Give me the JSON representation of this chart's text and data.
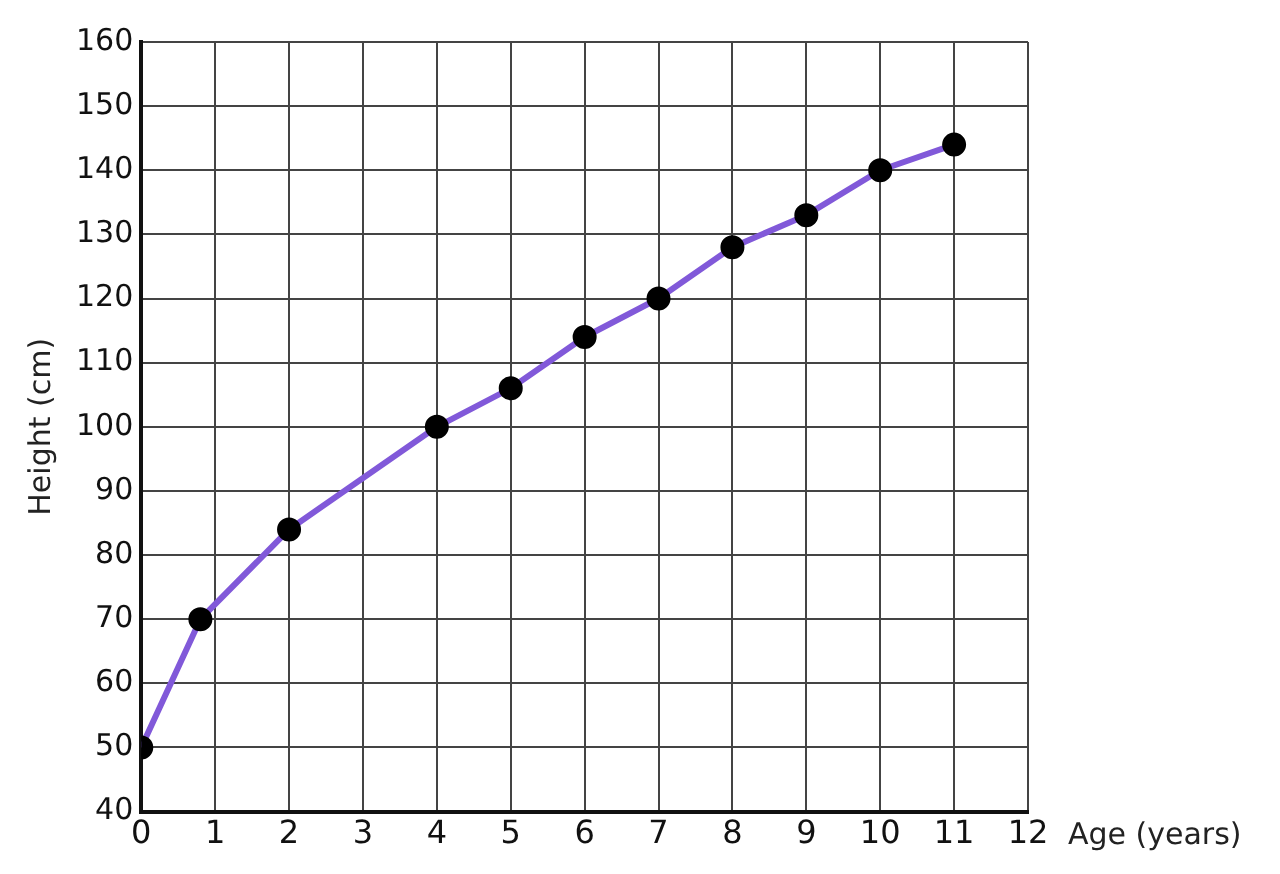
{
  "chart_data": {
    "type": "line",
    "xlabel": "Age (years)",
    "ylabel": "Height (cm)",
    "x": [
      0,
      0.8,
      2,
      4,
      5,
      6,
      7,
      8,
      9,
      10,
      11
    ],
    "series": [
      {
        "color": "#8159d9",
        "values": [
          50,
          70,
          84,
          100,
          106,
          114,
          120,
          128,
          133,
          140,
          144
        ]
      }
    ],
    "xlim": [
      0,
      12
    ],
    "xticks": [
      0,
      1,
      2,
      3,
      4,
      5,
      6,
      7,
      8,
      9,
      10,
      11,
      12
    ],
    "ylim": [
      40,
      160
    ],
    "yticks": [
      40,
      50,
      60,
      70,
      80,
      90,
      100,
      110,
      120,
      130,
      140,
      150,
      160
    ],
    "grid": true,
    "marker": "circle",
    "line_style": "solid"
  }
}
